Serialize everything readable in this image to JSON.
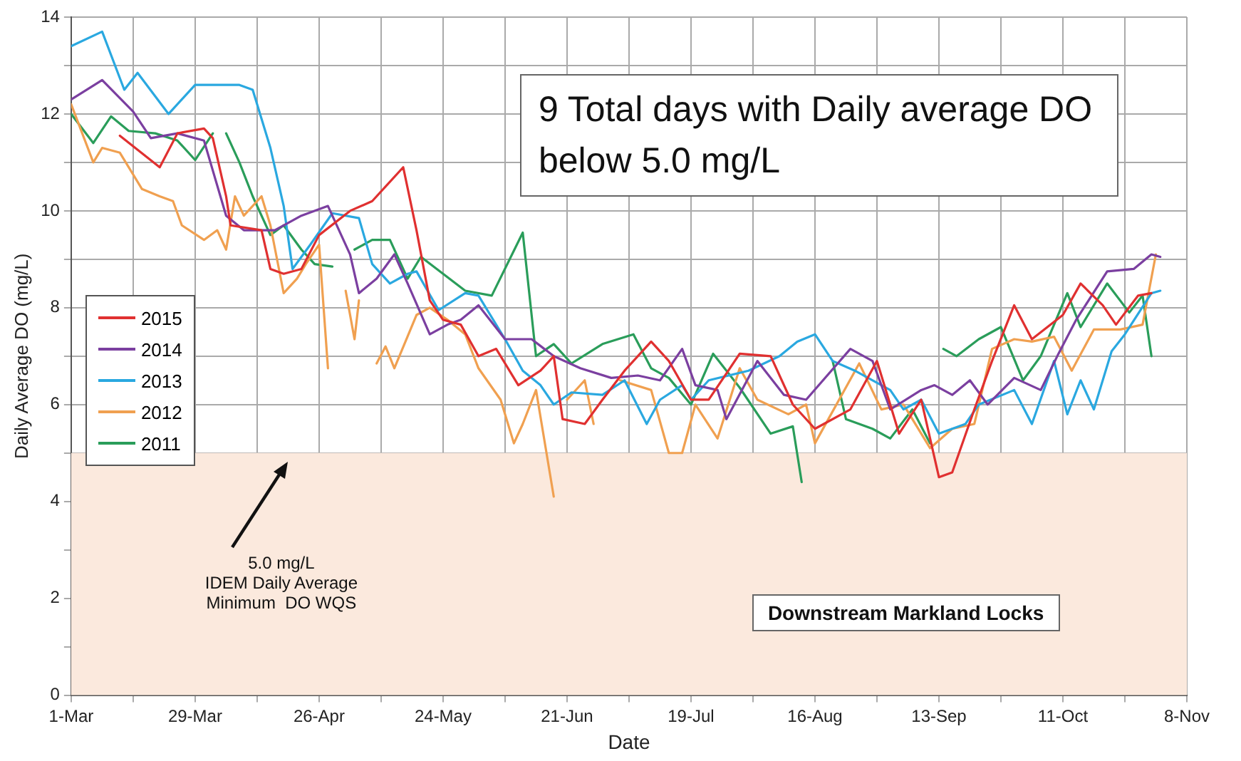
{
  "chart_data": {
    "type": "line",
    "xlabel": "Date",
    "ylabel": "Daily Average DO (mg/L)",
    "xlim": [
      "--03-01",
      "--11-08"
    ],
    "xticks": [
      {
        "value": "--03-01",
        "label": "1-Mar"
      },
      {
        "value": "--03-15",
        "label": null
      },
      {
        "value": "--03-29",
        "label": "29-Mar"
      },
      {
        "value": "--04-12",
        "label": null
      },
      {
        "value": "--04-26",
        "label": "26-Apr"
      },
      {
        "value": "--05-10",
        "label": null
      },
      {
        "value": "--05-24",
        "label": "24-May"
      },
      {
        "value": "--06-07",
        "label": null
      },
      {
        "value": "--06-21",
        "label": "21-Jun"
      },
      {
        "value": "--07-05",
        "label": null
      },
      {
        "value": "--07-19",
        "label": "19-Jul"
      },
      {
        "value": "--08-02",
        "label": null
      },
      {
        "value": "--08-16",
        "label": "16-Aug"
      },
      {
        "value": "--08-30",
        "label": null
      },
      {
        "value": "--09-13",
        "label": "13-Sep"
      },
      {
        "value": "--09-27",
        "label": null
      },
      {
        "value": "--10-11",
        "label": "11-Oct"
      },
      {
        "value": "--10-25",
        "label": null
      },
      {
        "value": "--11-08",
        "label": "8-Nov"
      }
    ],
    "ylim": [
      0,
      14
    ],
    "yticks": [
      0,
      {
        "value": 1,
        "label": null
      },
      2,
      {
        "value": 3,
        "label": null
      },
      4,
      {
        "value": 5,
        "label": null
      },
      6,
      {
        "value": 7,
        "label": null
      },
      8,
      {
        "value": 9,
        "label": null
      },
      10,
      {
        "value": 11,
        "label": null
      },
      12,
      {
        "value": 13,
        "label": null
      },
      14
    ],
    "grid": true,
    "legend": "left",
    "marker": "none",
    "line_style": "solid",
    "bands": [
      {
        "axis": "y",
        "from": 0,
        "to": 5,
        "color": "#fbe9dd",
        "label": "5.0 mg/L\nIDEM Daily Average\nMinimum  DO WQS"
      }
    ],
    "annotations": [
      "9 Total days with Daily average DO below 5.0 mg/L",
      "Downstream Markland Locks"
    ],
    "series": [
      {
        "name": "2015",
        "color": "#e03030",
        "x": [
          "--03-12",
          "--03-21",
          "--03-25",
          "--03-31",
          "--04-02",
          "--04-05",
          "--04-06",
          "--04-13",
          "--04-15",
          "--04-18",
          "--04-22",
          "--04-26",
          "--05-03",
          "--05-08",
          "--05-15",
          "--05-18",
          "--05-21",
          "--05-24",
          "--05-28",
          "--06-01",
          "--06-05",
          "--06-10",
          "--06-15",
          "--06-18",
          "--06-20",
          "--06-25",
          "--06-29",
          "--07-04",
          "--07-10",
          "--07-14",
          "--07-19",
          "--07-23",
          "--07-30",
          "--08-06",
          "--08-11",
          "--08-16",
          "--08-24",
          "--08-30",
          "--09-04",
          "--09-09",
          "--09-13",
          "--09-16",
          "--09-21",
          "--09-25",
          "--09-30",
          "--10-04",
          "--10-11",
          "--10-15",
          "--10-20",
          "--10-23",
          "--10-28",
          "--10-31"
        ],
        "values": [
          11.55,
          10.9,
          11.6,
          11.7,
          11.5,
          10.3,
          9.7,
          9.6,
          8.8,
          8.7,
          8.8,
          9.5,
          10.0,
          10.2,
          10.9,
          9.6,
          8.15,
          7.75,
          7.65,
          7.0,
          7.15,
          6.4,
          6.7,
          7.0,
          5.7,
          5.6,
          6.1,
          6.7,
          7.3,
          6.9,
          6.1,
          6.1,
          7.05,
          7.0,
          6.0,
          5.5,
          5.9,
          6.9,
          5.4,
          6.1,
          4.5,
          4.6,
          5.9,
          6.9,
          8.05,
          7.35,
          7.85,
          8.5,
          8.05,
          7.65,
          8.25,
          8.3
        ]
      },
      {
        "name": "2014",
        "color": "#7b3fa0",
        "x": [
          "--03-01",
          "--03-08",
          "--03-15",
          "--03-19",
          "--03-25",
          "--03-31",
          "--04-05",
          "--04-09",
          "--04-16",
          "--04-22",
          "--04-28",
          "--05-03",
          "--05-05",
          "--05-09",
          "--05-13",
          "--05-16",
          "--05-21",
          "--05-25",
          "--05-28",
          "--06-01",
          "--06-07",
          "--06-13",
          "--06-18",
          "--06-24",
          "--07-01",
          "--07-07",
          "--07-12",
          "--07-17",
          "--07-20",
          "--07-25",
          "--07-27",
          "--08-03",
          "--08-09",
          "--08-14",
          "--08-24",
          "--08-29",
          "--09-02",
          "--09-09",
          "--09-12",
          "--09-16",
          "--09-20",
          "--09-24",
          "--09-30",
          "--10-06",
          "--10-10",
          "--10-14",
          "--10-21",
          "--10-27",
          "--10-31",
          "--11-02"
        ],
        "values": [
          12.3,
          12.7,
          12.05,
          11.5,
          11.6,
          11.45,
          9.9,
          9.6,
          9.6,
          9.9,
          10.1,
          9.1,
          8.3,
          8.6,
          9.1,
          8.5,
          7.45,
          7.65,
          7.75,
          8.05,
          7.35,
          7.35,
          7.0,
          6.75,
          6.55,
          6.6,
          6.5,
          7.15,
          6.4,
          6.3,
          5.7,
          6.9,
          6.2,
          6.1,
          7.15,
          6.9,
          5.9,
          6.3,
          6.4,
          6.2,
          6.5,
          6.0,
          6.55,
          6.3,
          7.05,
          7.75,
          8.75,
          8.8,
          9.1,
          9.05
        ]
      },
      {
        "name": "2013",
        "color": "#2aa8e0",
        "x": [
          "--03-01",
          "--03-08",
          "--03-13",
          "--03-16",
          "--03-23",
          "--03-29",
          "--04-08",
          "--04-11",
          "--04-15",
          "--04-18",
          "--04-20",
          "--04-24",
          "--04-29",
          "--05-05",
          "--05-08",
          "--05-12",
          "--05-16",
          "--05-18",
          "--05-23",
          "--05-29",
          "--06-01",
          "--06-07",
          "--06-11",
          "--06-15",
          "--06-18",
          "--06-22",
          "--06-29",
          "--07-04",
          "--07-09",
          "--07-12",
          "--07-17",
          "--07-19",
          "--07-23",
          "--08-01",
          "--08-08",
          "--08-12",
          "--08-16",
          "--08-20",
          "--08-25",
          "--09-02",
          "--09-05",
          "--09-09",
          "--09-13",
          "--09-19",
          "--09-22",
          "--09-30",
          "--10-04",
          "--10-09",
          "--10-12",
          "--10-15",
          "--10-18",
          "--10-22",
          "--10-25",
          "--10-31",
          "--11-02"
        ],
        "values": [
          13.4,
          13.7,
          12.5,
          12.85,
          12.0,
          12.6,
          12.6,
          12.5,
          11.3,
          10.1,
          8.8,
          9.3,
          9.95,
          9.85,
          8.9,
          8.5,
          8.7,
          8.75,
          7.95,
          8.3,
          8.25,
          7.35,
          6.7,
          6.4,
          6.0,
          6.25,
          6.2,
          6.5,
          5.6,
          6.1,
          6.4,
          6.1,
          6.5,
          6.7,
          7.0,
          7.3,
          7.45,
          6.9,
          6.7,
          6.3,
          5.9,
          6.1,
          5.4,
          5.6,
          6.0,
          6.3,
          5.6,
          6.9,
          5.8,
          6.5,
          5.9,
          7.1,
          7.45,
          8.3,
          8.35
        ]
      },
      {
        "name": "2012",
        "color": "#f0a050",
        "x": [
          "--03-01",
          "--03-06",
          "--03-08",
          "--03-12",
          "--03-17",
          "--03-21",
          "--03-24",
          "--03-26",
          "--03-31",
          "--04-03",
          "--04-05",
          "--04-07",
          "--04-09",
          "--04-13",
          "--04-15",
          "--04-18",
          "--04-21",
          "--04-23",
          "--04-26",
          "--04-28",
          "--04-30",
          "--05-02",
          "--05-04",
          "--05-05",
          "--05-07",
          "--05-09",
          "--05-11",
          "--05-13",
          "--05-18",
          "--05-21",
          "--05-25",
          "--05-29",
          "--06-01",
          "--06-06",
          "--06-09",
          "--06-11",
          "--06-14",
          "--06-18",
          "--06-19",
          "--06-21",
          "--06-25",
          "--06-27",
          "--06-30",
          "--07-03",
          "--07-10",
          "--07-14",
          "--07-17",
          "--07-20",
          "--07-25",
          "--07-30",
          "--08-03",
          "--08-10",
          "--08-14",
          "--08-16",
          "--08-26",
          "--08-31",
          "--09-05",
          "--09-11",
          "--09-16",
          "--09-21",
          "--09-25",
          "--09-30",
          "--10-04",
          "--10-09",
          "--10-13",
          "--10-18",
          "--10-24",
          "--10-29",
          "--11-01"
        ],
        "values": [
          12.2,
          11.0,
          11.3,
          11.2,
          10.45,
          10.3,
          10.2,
          9.7,
          9.4,
          9.6,
          9.2,
          10.3,
          9.9,
          10.3,
          9.7,
          8.3,
          8.6,
          8.9,
          9.3,
          6.75,
          null,
          8.35,
          7.35,
          8.15,
          null,
          6.85,
          7.2,
          6.75,
          7.85,
          8.0,
          7.75,
          7.45,
          6.75,
          6.1,
          5.2,
          5.6,
          6.3,
          4.1,
          null,
          6.1,
          6.5,
          5.6,
          null,
          6.5,
          6.3,
          5.0,
          5.0,
          6.0,
          5.3,
          6.75,
          6.1,
          5.8,
          6.0,
          5.2,
          6.85,
          5.9,
          6.0,
          5.1,
          5.5,
          5.6,
          7.15,
          7.35,
          7.3,
          7.4,
          6.7,
          7.55,
          7.55,
          7.65,
          9.1
        ]
      },
      {
        "name": "2011",
        "color": "#2a9d5a",
        "x": [
          "--03-01",
          "--03-06",
          "--03-10",
          "--03-14",
          "--03-20",
          "--03-25",
          "--03-29",
          "--04-02",
          "--04-03",
          "--04-05",
          "--04-08",
          "--04-11",
          "--04-15",
          "--04-18",
          "--04-22",
          "--04-25",
          "--04-29",
          "--05-01",
          "--05-04",
          "--05-08",
          "--05-12",
          "--05-16",
          "--05-19",
          "--05-24",
          "--05-29",
          "--06-04",
          "--06-11",
          "--06-14",
          "--06-18",
          "--06-22",
          "--06-29",
          "--07-06",
          "--07-10",
          "--07-14",
          "--07-19",
          "--07-24",
          "--07-30",
          "--08-06",
          "--08-11",
          "--08-13",
          "--08-16",
          "--08-20",
          "--08-23",
          "--08-29",
          "--09-02",
          "--09-07",
          "--09-11",
          "--09-12",
          "--09-14",
          "--09-17",
          "--09-22",
          "--09-27",
          "--10-02",
          "--10-06",
          "--10-12",
          "--10-15",
          "--10-21",
          "--10-26",
          "--10-29",
          "--10-31"
        ],
        "values": [
          12.0,
          11.4,
          11.95,
          11.65,
          11.6,
          11.45,
          11.05,
          11.6,
          null,
          11.6,
          11.0,
          10.3,
          9.5,
          9.7,
          9.2,
          8.9,
          8.85,
          null,
          9.2,
          9.4,
          9.4,
          8.6,
          9.05,
          8.7,
          8.35,
          8.25,
          9.55,
          7.0,
          7.25,
          6.85,
          7.25,
          7.45,
          6.75,
          6.55,
          6.0,
          7.05,
          6.35,
          5.4,
          5.55,
          4.4,
          null,
          6.9,
          5.7,
          5.5,
          5.3,
          5.9,
          5.2,
          null,
          7.15,
          7.0,
          7.35,
          7.6,
          6.5,
          7.0,
          8.3,
          7.6,
          8.5,
          7.9,
          8.25,
          7.0
        ]
      }
    ]
  }
}
